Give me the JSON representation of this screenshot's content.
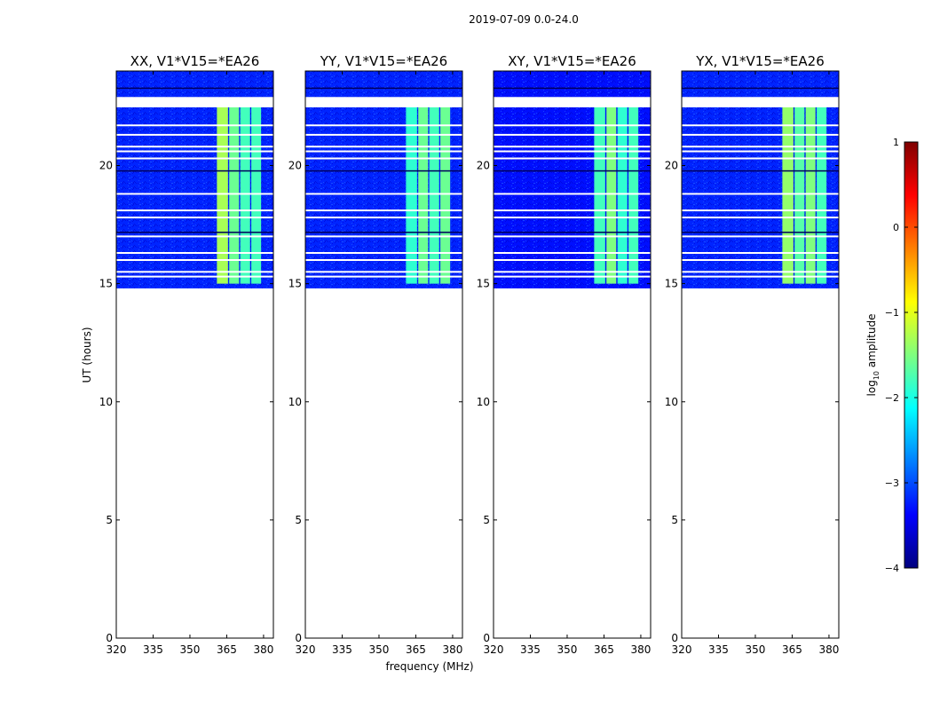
{
  "figure": {
    "suptitle": "2019-07-09 0.0-24.0",
    "ylabel": "UT (hours)",
    "xlabel": "frequency (MHz)"
  },
  "colorbar": {
    "label_prefix": "log",
    "label_sub": "10",
    "label_suffix": " amplitude",
    "range": [
      -4,
      1
    ],
    "ticks": [
      1,
      0,
      -1,
      -2,
      -3,
      -4
    ],
    "tick_labels": [
      "1",
      "0",
      "−1",
      "−2",
      "−3",
      "−4"
    ],
    "colormap": [
      "#00007f",
      "#0000ff",
      "#007fff",
      "#00ffff",
      "#7fff7f",
      "#ffff00",
      "#ff7f00",
      "#ff0000",
      "#7f0000"
    ]
  },
  "chart_data": [
    {
      "type": "heatmap",
      "title": "XX, V1*V15=*EA26",
      "x_range": [
        320,
        384
      ],
      "y_range": [
        0,
        24
      ],
      "x_ticks": [
        320,
        335,
        350,
        365,
        380
      ],
      "x_tick_labels": [
        "320",
        "335",
        "350",
        "365",
        "380"
      ],
      "y_ticks": [
        0,
        5,
        10,
        15,
        20
      ],
      "y_tick_labels": [
        "0",
        "5",
        "10",
        "15",
        "20"
      ],
      "data_time_range": [
        14.8,
        24
      ],
      "background_log10_amplitude": -3.2,
      "bright_bands": [
        {
          "freq_range": [
            361,
            365.5
          ],
          "log10_amplitude": -1.3
        },
        {
          "freq_range": [
            366,
            370
          ],
          "log10_amplitude": -1.6
        },
        {
          "freq_range": [
            370.5,
            374.5
          ],
          "log10_amplitude": -1.8
        },
        {
          "freq_range": [
            375,
            379
          ],
          "log10_amplitude": -1.8
        }
      ],
      "flagged_hours": [
        22.5,
        21.7,
        21.3,
        20.8,
        20.6,
        20.3,
        18.8,
        18.1,
        17.8,
        17.0,
        16.3,
        16.0,
        15.5,
        15.3
      ]
    },
    {
      "type": "heatmap",
      "title": "YY, V1*V15=*EA26",
      "x_range": [
        320,
        384
      ],
      "y_range": [
        0,
        24
      ],
      "x_ticks": [
        320,
        335,
        350,
        365,
        380
      ],
      "x_tick_labels": [
        "320",
        "335",
        "350",
        "365",
        "380"
      ],
      "y_ticks": [
        0,
        5,
        10,
        15,
        20
      ],
      "y_tick_labels": [
        "0",
        "5",
        "10",
        "15",
        "20"
      ],
      "data_time_range": [
        14.8,
        24
      ],
      "background_log10_amplitude": -3.2,
      "bright_bands": [
        {
          "freq_range": [
            361,
            365.5
          ],
          "log10_amplitude": -1.9
        },
        {
          "freq_range": [
            366,
            370
          ],
          "log10_amplitude": -1.6
        },
        {
          "freq_range": [
            370.5,
            374.5
          ],
          "log10_amplitude": -1.8
        },
        {
          "freq_range": [
            375,
            379
          ],
          "log10_amplitude": -1.6
        }
      ],
      "flagged_hours": [
        22.5,
        21.7,
        21.3,
        20.8,
        20.6,
        20.3,
        18.8,
        18.1,
        17.8,
        17.0,
        16.3,
        16.0,
        15.5,
        15.3
      ]
    },
    {
      "type": "heatmap",
      "title": "XY, V1*V15=*EA26",
      "x_range": [
        320,
        384
      ],
      "y_range": [
        0,
        24
      ],
      "x_ticks": [
        320,
        335,
        350,
        365,
        380
      ],
      "x_tick_labels": [
        "320",
        "335",
        "350",
        "365",
        "380"
      ],
      "y_ticks": [
        0,
        5,
        10,
        15,
        20
      ],
      "y_tick_labels": [
        "0",
        "5",
        "10",
        "15",
        "20"
      ],
      "data_time_range": [
        14.8,
        24
      ],
      "background_log10_amplitude": -3.3,
      "bright_bands": [
        {
          "freq_range": [
            361,
            365.5
          ],
          "log10_amplitude": -1.8
        },
        {
          "freq_range": [
            366,
            370
          ],
          "log10_amplitude": -1.5
        },
        {
          "freq_range": [
            370.5,
            374.5
          ],
          "log10_amplitude": -1.9
        },
        {
          "freq_range": [
            375,
            379
          ],
          "log10_amplitude": -1.8
        }
      ],
      "flagged_hours": [
        22.5,
        21.7,
        21.3,
        20.8,
        20.6,
        20.3,
        18.8,
        18.1,
        17.8,
        17.0,
        16.3,
        16.0,
        15.5,
        15.3
      ]
    },
    {
      "type": "heatmap",
      "title": "YX, V1*V15=*EA26",
      "x_range": [
        320,
        384
      ],
      "y_range": [
        0,
        24
      ],
      "x_ticks": [
        320,
        335,
        350,
        365,
        380
      ],
      "x_tick_labels": [
        "320",
        "335",
        "350",
        "365",
        "380"
      ],
      "y_ticks": [
        0,
        5,
        10,
        15,
        20
      ],
      "y_tick_labels": [
        "0",
        "5",
        "10",
        "15",
        "20"
      ],
      "data_time_range": [
        14.8,
        24
      ],
      "background_log10_amplitude": -3.2,
      "bright_bands": [
        {
          "freq_range": [
            361,
            365.5
          ],
          "log10_amplitude": -1.4
        },
        {
          "freq_range": [
            366,
            370
          ],
          "log10_amplitude": -1.7
        },
        {
          "freq_range": [
            370.5,
            374.5
          ],
          "log10_amplitude": -1.5
        },
        {
          "freq_range": [
            375,
            379
          ],
          "log10_amplitude": -1.8
        }
      ],
      "flagged_hours": [
        22.5,
        21.7,
        21.3,
        20.8,
        20.6,
        20.3,
        18.8,
        18.1,
        17.8,
        17.0,
        16.3,
        16.0,
        15.5,
        15.3
      ]
    }
  ]
}
